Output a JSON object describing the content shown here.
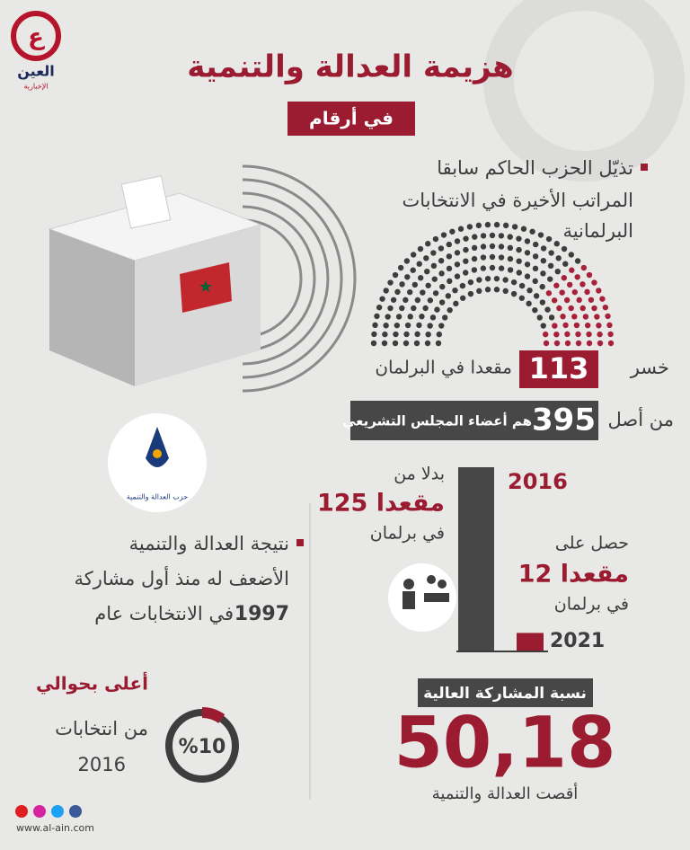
{
  "logo": {
    "name": "العين",
    "tagline": "الإخبارية"
  },
  "header": {
    "title": "هزيمة العدالة والتنمية",
    "subtitle": "في أرقام"
  },
  "point1": {
    "lines": [
      "تذيّل الحزب الحاكم سابقا",
      "المراتب الأخيرة في الانتخابات",
      "البرلمانية"
    ]
  },
  "lost": {
    "prefix": "خسر",
    "seats": 113,
    "suffix": "مقعدا في البرلمان"
  },
  "total": {
    "prefix": "من أصل",
    "seats": 395,
    "suffix": "هم أعضاء المجلس التشريعي"
  },
  "party_logo": {
    "name": "حزب العدالة والتنمية"
  },
  "seats_chart": {
    "years": [
      "2016",
      "2021"
    ],
    "values": [
      125,
      12
    ],
    "before": {
      "lead": "بدلا من",
      "seats": "125 مقعدا",
      "tail": "في برلمان"
    },
    "after": {
      "lead": "حصل على",
      "seats": "12 مقعدا",
      "tail": "في برلمان"
    }
  },
  "point2": {
    "lines": [
      "نتيجة العدالة والتنمية",
      "الأضعف له منذ أول مشاركة",
      "في الانتخابات عام"
    ],
    "year": "1997"
  },
  "turnout_change": {
    "lead": "أعلى بحوالي",
    "percent": {
      "value": 10,
      "label": "%10"
    },
    "from": "من انتخابات",
    "year": "2016"
  },
  "turnout": {
    "title": "نسبة المشاركة العالية",
    "value": "50,18",
    "caption": "أقصت العدالة والتنمية"
  },
  "footer": {
    "url": "www.al-ain.com"
  }
}
